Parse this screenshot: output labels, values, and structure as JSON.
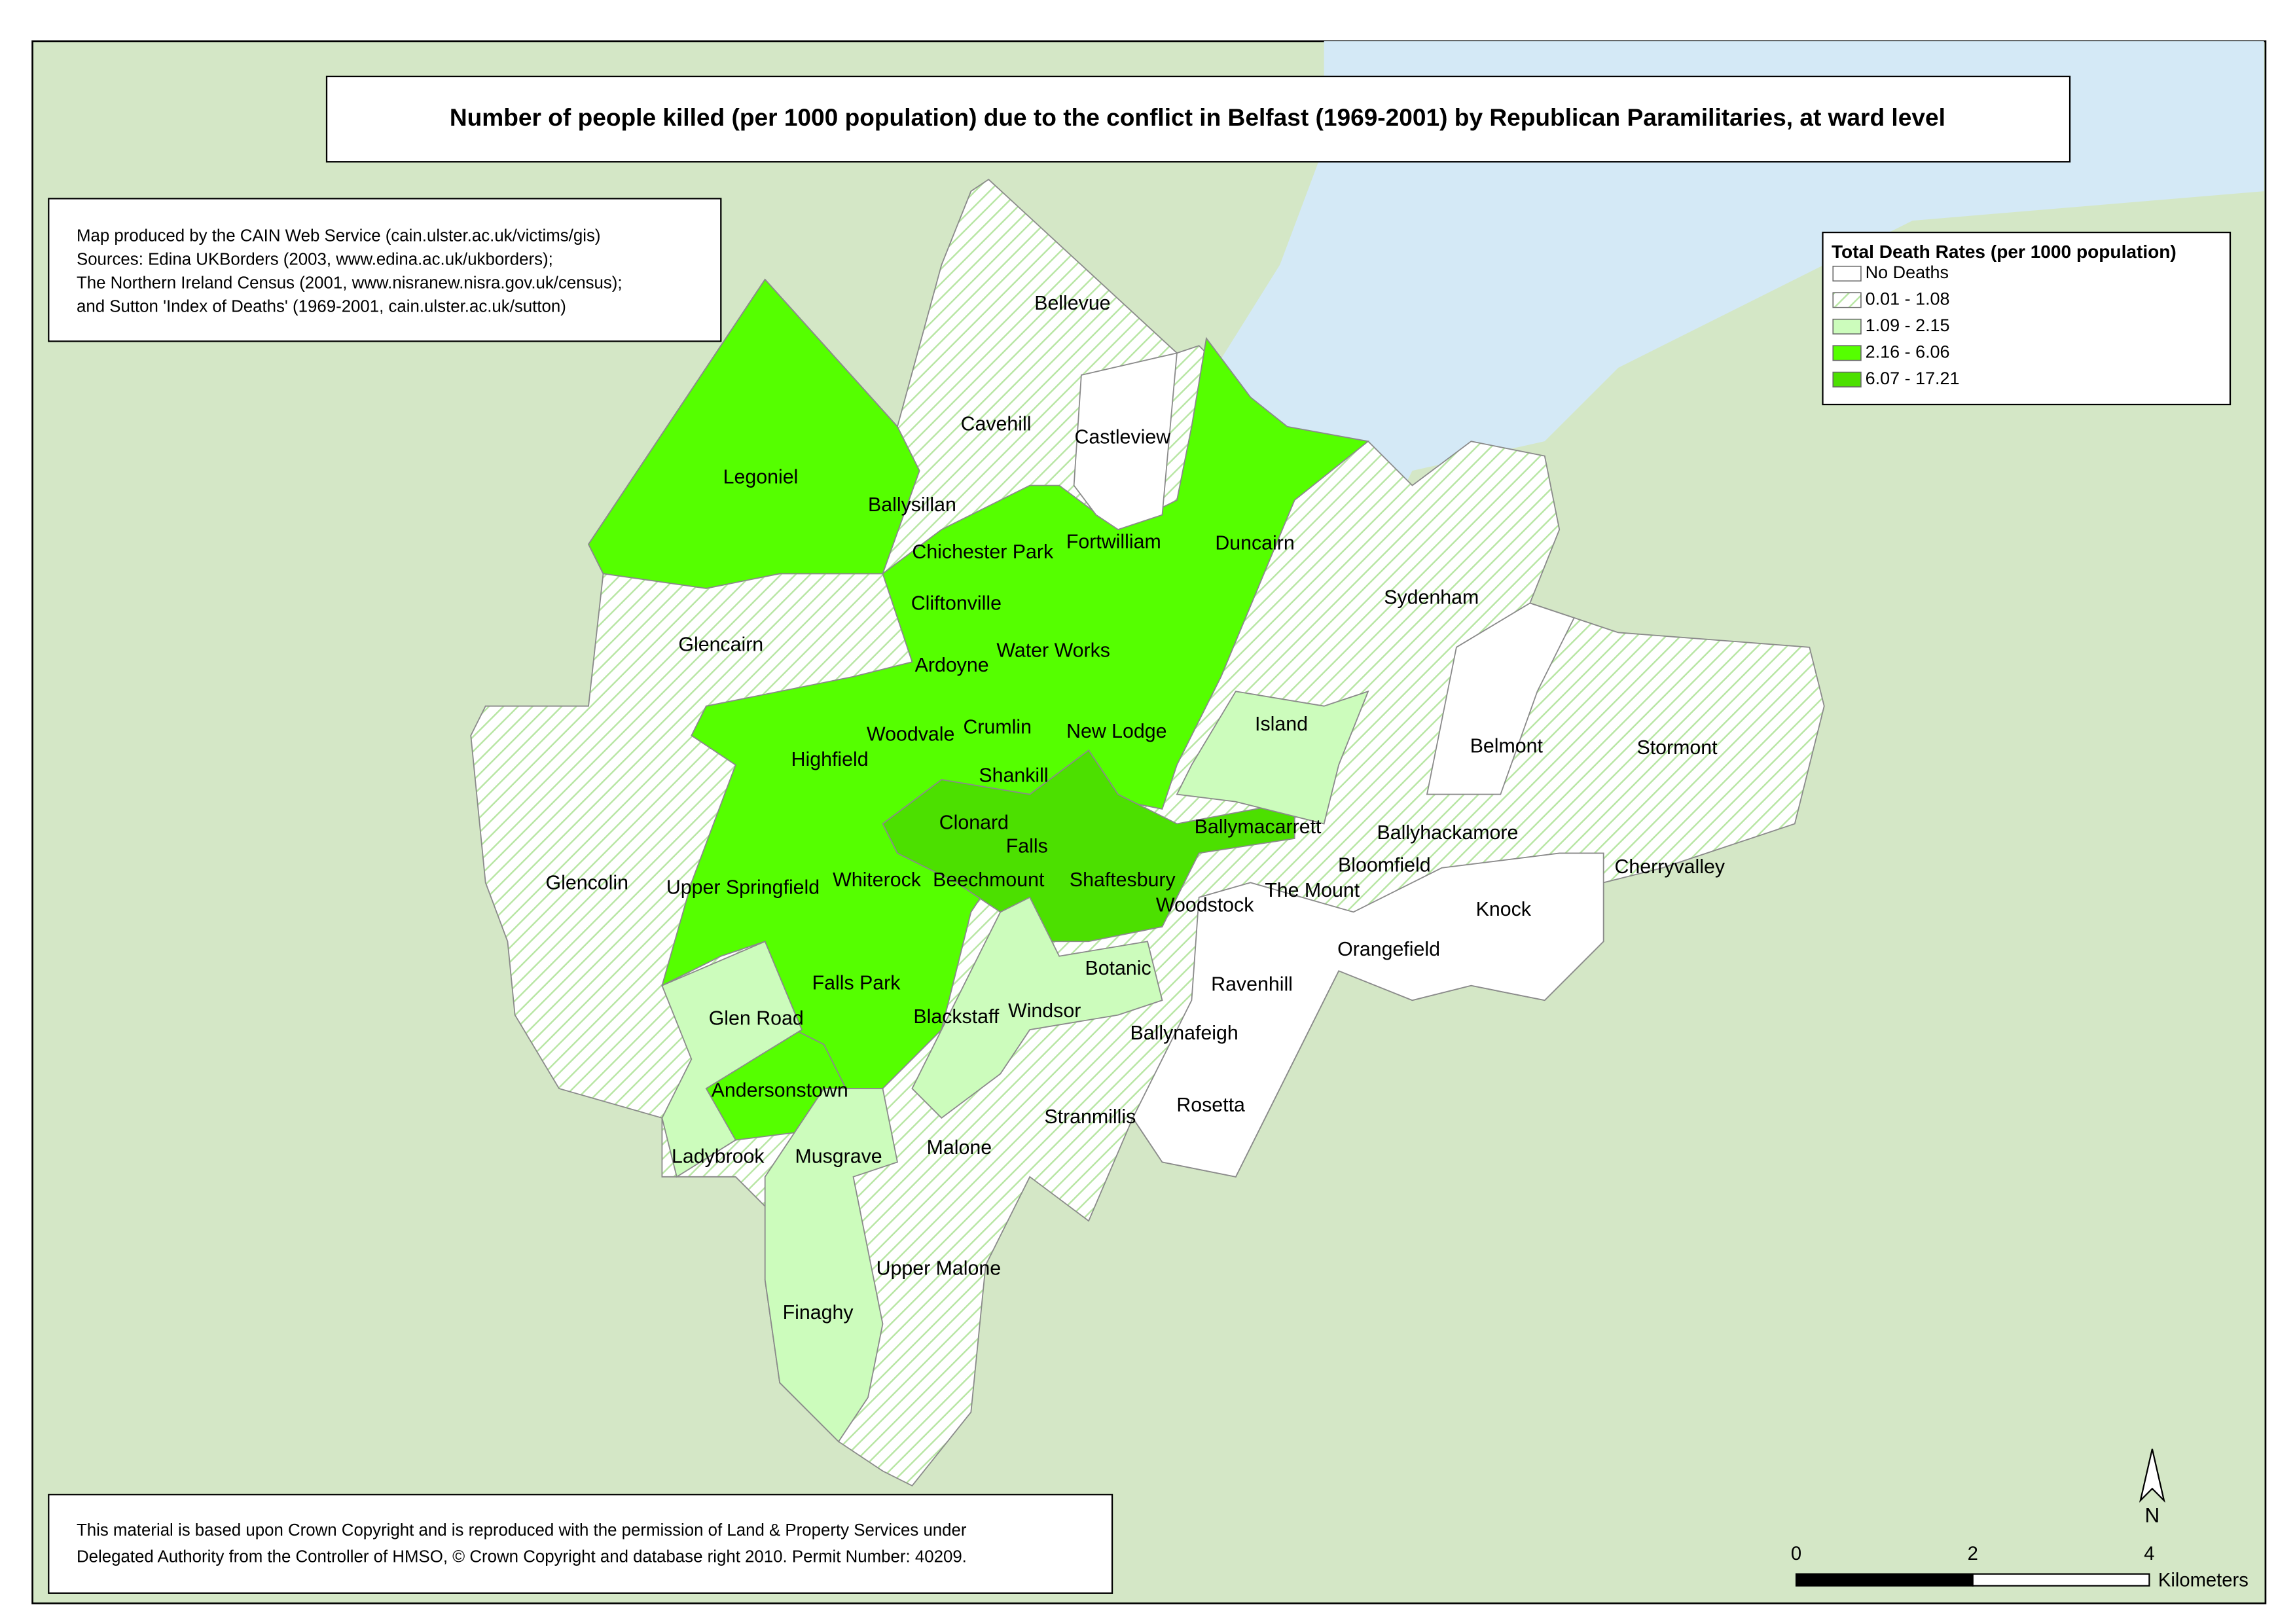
{
  "title": "Number of people killed (per 1000 population) due to the conflict in Belfast (1969-2001) by Republican Paramilitaries, at ward level",
  "credits": [
    "Map produced by the CAIN Web Service (cain.ulster.ac.uk/victims/gis)",
    "Sources: Edina UKBorders (2003, www.edina.ac.uk/ukborders);",
    "The Northern Ireland Census (2001, www.nisranew.nisra.gov.uk/census);",
    "and Sutton 'Index of Deaths' (1969-2001, cain.ulster.ac.uk/sutton)"
  ],
  "legend": {
    "title": "Total Death Rates (per 1000 population)",
    "items": [
      {
        "label": "No Deaths",
        "color": "#ffffff"
      },
      {
        "label": "0.01 - 1.08",
        "color": "#b8e6a4",
        "hatched": true
      },
      {
        "label": "1.09 - 2.15",
        "color": "#ccfcbc"
      },
      {
        "label": "2.16 - 6.06",
        "color": "#55ff00"
      },
      {
        "label": "6.07 - 17.21",
        "color": "#4ce000"
      }
    ]
  },
  "wards": [
    "Bellevue",
    "Cavehill",
    "Castleview",
    "Legoniel",
    "Ballysillan",
    "Fortwilliam",
    "Duncairn",
    "Chichester Park",
    "Cliftonville",
    "Sydenham",
    "Glencairn",
    "Water Works",
    "Ardoyne",
    "Island",
    "Crumlin",
    "New Lodge",
    "Woodvale",
    "Belmont",
    "Stormont",
    "Highfield",
    "Shankill",
    "Clonard",
    "Ballymacarrett",
    "Ballyhackamore",
    "Falls",
    "Bloomfield",
    "Cherryvalley",
    "Glencolin",
    "Upper Springfield",
    "Whiterock",
    "Beechmount",
    "Shaftesbury",
    "The Mount",
    "Woodstock",
    "Knock",
    "Orangefield",
    "Botanic",
    "Ravenhill",
    "Falls Park",
    "Glen Road",
    "Blackstaff",
    "Windsor",
    "Ballynafeigh",
    "Andersonstown",
    "Rosetta",
    "Stranmillis",
    "Malone",
    "Ladybrook",
    "Musgrave",
    "Upper Malone",
    "Finaghy"
  ],
  "copyright": [
    "This material is based upon Crown Copyright and is reproduced with the permission of Land & Property Services under",
    "Delegated Authority from the Controller of HMSO, © Crown Copyright and database right 2010. Permit Number: 40209."
  ],
  "scale": {
    "ticks": [
      0,
      2,
      4
    ],
    "unit": "Kilometers"
  },
  "north": "N"
}
